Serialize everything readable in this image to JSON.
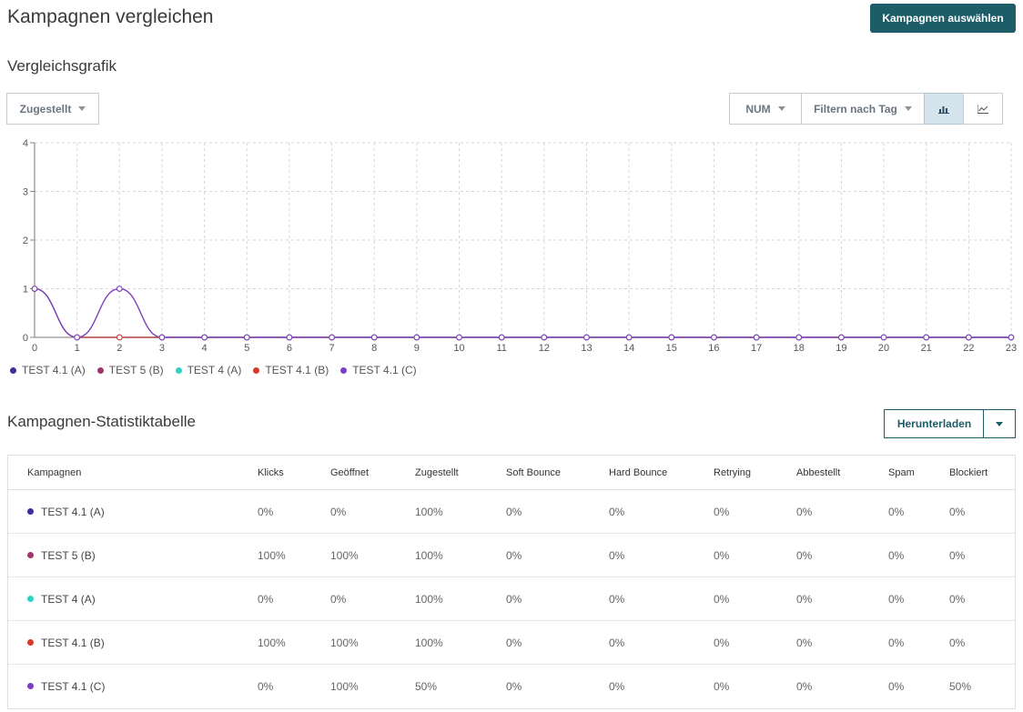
{
  "header": {
    "title": "Kampagnen vergleichen",
    "select_campaigns_label": "Kampagnen auswählen"
  },
  "chart_section": {
    "title": "Vergleichsgrafik",
    "metric_dropdown": "Zugestellt",
    "num_dropdown": "NUM",
    "day_filter": "Filtern nach Tag",
    "bar_view_icon": "bar-chart-icon",
    "line_view_icon": "line-chart-icon"
  },
  "chart_data": {
    "type": "line",
    "x": [
      0,
      1,
      2,
      3,
      4,
      5,
      6,
      7,
      8,
      9,
      10,
      11,
      12,
      13,
      14,
      15,
      16,
      17,
      18,
      19,
      20,
      21,
      22,
      23
    ],
    "x_tick_labels": [
      "0",
      "1",
      "2",
      "3",
      "4",
      "5",
      "6",
      "7",
      "8",
      "9",
      "10",
      "11",
      "12",
      "13",
      "14",
      "15",
      "16",
      "17",
      "18",
      "19",
      "20",
      "21",
      "22",
      "23"
    ],
    "ylim": [
      0,
      4
    ],
    "y_ticks": [
      0,
      1,
      2,
      3,
      4
    ],
    "y_tick_labels": [
      "0",
      "1",
      "2",
      "3",
      "4"
    ],
    "grid": true,
    "legend_position": "bottom-left",
    "series": [
      {
        "name": "TEST 4.1 (A)",
        "color": "#3b2fa0",
        "values": [
          1,
          0,
          0,
          0,
          0,
          0,
          0,
          0,
          0,
          0,
          0,
          0,
          0,
          0,
          0,
          0,
          0,
          0,
          0,
          0,
          0,
          0,
          0,
          0
        ]
      },
      {
        "name": "TEST 5 (B)",
        "color": "#a3346b",
        "values": [
          1,
          0,
          1,
          0,
          0,
          0,
          0,
          0,
          0,
          0,
          0,
          0,
          0,
          0,
          0,
          0,
          0,
          0,
          0,
          0,
          0,
          0,
          0,
          0
        ]
      },
      {
        "name": "TEST 4 (A)",
        "color": "#2ed3c8",
        "values": [
          1,
          0,
          0,
          0,
          0,
          0,
          0,
          0,
          0,
          0,
          0,
          0,
          0,
          0,
          0,
          0,
          0,
          0,
          0,
          0,
          0,
          0,
          0,
          0
        ]
      },
      {
        "name": "TEST 4.1 (B)",
        "color": "#d8392b",
        "values": [
          1,
          0,
          0,
          0,
          0,
          0,
          0,
          0,
          0,
          0,
          0,
          0,
          0,
          0,
          0,
          0,
          0,
          0,
          0,
          0,
          0,
          0,
          0,
          0
        ]
      },
      {
        "name": "TEST 4.1 (C)",
        "color": "#7a3fc4",
        "values": [
          1,
          0,
          1,
          0,
          0,
          0,
          0,
          0,
          0,
          0,
          0,
          0,
          0,
          0,
          0,
          0,
          0,
          0,
          0,
          0,
          0,
          0,
          0,
          0
        ]
      }
    ]
  },
  "stats_section": {
    "title": "Kampagnen-Statistiktabelle",
    "download_label": "Herunterladen",
    "columns": [
      "Kampagnen",
      "Klicks",
      "Geöffnet",
      "Zugestellt",
      "Soft Bounce",
      "Hard Bounce",
      "Retrying",
      "Abbestellt",
      "Spam",
      "Blockiert"
    ],
    "rows": [
      {
        "color": "#3b2fa0",
        "name": "TEST 4.1 (A)",
        "values": [
          "0%",
          "0%",
          "100%",
          "0%",
          "0%",
          "0%",
          "0%",
          "0%",
          "0%"
        ]
      },
      {
        "color": "#a3346b",
        "name": "TEST 5 (B)",
        "values": [
          "100%",
          "100%",
          "100%",
          "0%",
          "0%",
          "0%",
          "0%",
          "0%",
          "0%"
        ]
      },
      {
        "color": "#2ed3c8",
        "name": "TEST 4 (A)",
        "values": [
          "0%",
          "0%",
          "100%",
          "0%",
          "0%",
          "0%",
          "0%",
          "0%",
          "0%"
        ]
      },
      {
        "color": "#d8392b",
        "name": "TEST 4.1 (B)",
        "values": [
          "100%",
          "100%",
          "100%",
          "0%",
          "0%",
          "0%",
          "0%",
          "0%",
          "0%"
        ]
      },
      {
        "color": "#7a3fc4",
        "name": "TEST 4.1 (C)",
        "values": [
          "0%",
          "100%",
          "50%",
          "0%",
          "0%",
          "0%",
          "0%",
          "0%",
          "50%"
        ]
      }
    ]
  }
}
